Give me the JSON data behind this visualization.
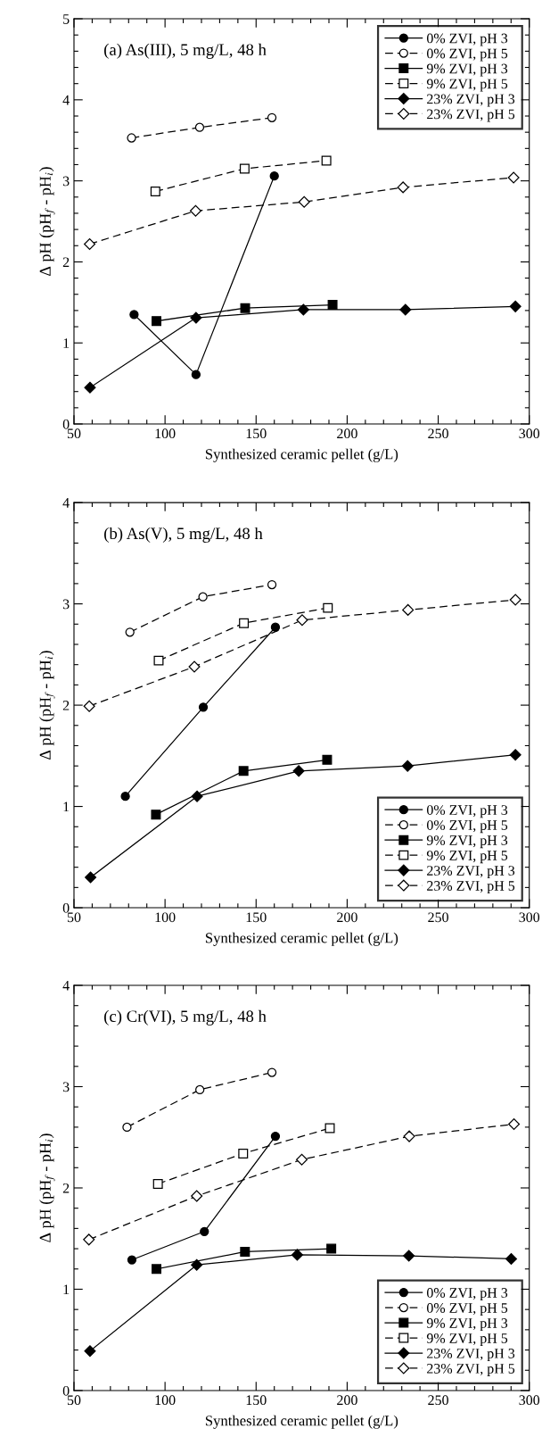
{
  "chart_data": [
    {
      "type": "line",
      "title": "(a) As(III), 5 mg/L, 48 h",
      "xlabel": "Synthesized ceramic pellet (g/L)",
      "ylabel": "Δ pH (pH$_{f}$ - pH$_{i}$)",
      "xlim": [
        50,
        300
      ],
      "xticks": [
        50,
        100,
        150,
        200,
        250,
        300
      ],
      "ylim": [
        0,
        5
      ],
      "yticks": [
        0,
        1,
        2,
        3,
        4,
        5
      ],
      "grid": false,
      "legend": "top right",
      "series": [
        {
          "name": "0% ZVI, pH 3",
          "color": "#000000",
          "marker": "circle",
          "line_style": "solid",
          "x": [
            83,
            117,
            160
          ],
          "values": [
            1.35,
            0.61,
            3.06
          ]
        },
        {
          "name": "0% ZVI, pH 5",
          "color": "#000000",
          "marker": "circle",
          "line_style": "dashed",
          "x": [
            81.6,
            119,
            158.7
          ],
          "values": [
            3.53,
            3.66,
            3.78
          ]
        },
        {
          "name": "9% ZVI, pH 3",
          "color": "#000000",
          "marker": "square",
          "line_style": "solid",
          "x": [
            95.3,
            144,
            192
          ],
          "values": [
            1.27,
            1.43,
            1.47
          ]
        },
        {
          "name": "9% ZVI, pH 5",
          "color": "#000000",
          "marker": "square",
          "line_style": "dashed",
          "x": [
            94.7,
            143.7,
            188.6
          ],
          "values": [
            2.87,
            3.15,
            3.25
          ]
        },
        {
          "name": "23% ZVI, pH 3",
          "color": "#000000",
          "marker": "diamond",
          "line_style": "solid",
          "x": [
            58.8,
            117,
            176,
            232,
            292.4
          ],
          "values": [
            0.45,
            1.31,
            1.41,
            1.41,
            1.45
          ]
        },
        {
          "name": "23% ZVI, pH 5",
          "color": "#000000",
          "marker": "diamond",
          "line_style": "dashed",
          "x": [
            58.6,
            116.8,
            176.4,
            230.7,
            291.4
          ],
          "values": [
            2.22,
            2.63,
            2.74,
            2.92,
            3.04
          ]
        }
      ]
    },
    {
      "type": "line",
      "title": "(b) As(V), 5 mg/L, 48 h",
      "xlabel": "Synthesized ceramic pellet (g/L)",
      "ylabel": "Δ pH (pH$_{f}$ - pH$_{i}$)",
      "xlim": [
        50,
        300
      ],
      "xticks": [
        50,
        100,
        150,
        200,
        250,
        300
      ],
      "ylim": [
        0,
        4
      ],
      "yticks": [
        0,
        1,
        2,
        3,
        4
      ],
      "grid": false,
      "legend": "bottom right",
      "series": [
        {
          "name": "0% ZVI, pH 3",
          "color": "#000000",
          "marker": "circle",
          "line_style": "solid",
          "x": [
            78.2,
            121,
            160.6
          ],
          "values": [
            1.1,
            1.98,
            2.77
          ]
        },
        {
          "name": "0% ZVI, pH 5",
          "color": "#000000",
          "marker": "circle",
          "line_style": "dashed",
          "x": [
            80.7,
            120.8,
            158.7
          ],
          "values": [
            2.72,
            3.07,
            3.19
          ]
        },
        {
          "name": "9% ZVI, pH 3",
          "color": "#000000",
          "marker": "square",
          "line_style": "solid",
          "x": [
            95,
            143.1,
            189
          ],
          "values": [
            0.92,
            1.35,
            1.46
          ]
        },
        {
          "name": "9% ZVI, pH 5",
          "color": "#000000",
          "marker": "square",
          "line_style": "dashed",
          "x": [
            96.5,
            143.3,
            189.4
          ],
          "values": [
            2.44,
            2.81,
            2.96
          ]
        },
        {
          "name": "23% ZVI, pH 3",
          "color": "#000000",
          "marker": "diamond",
          "line_style": "solid",
          "x": [
            59.1,
            117.6,
            173.4,
            233.2,
            292.4
          ],
          "values": [
            0.3,
            1.1,
            1.35,
            1.4,
            1.51
          ]
        },
        {
          "name": "23% ZVI, pH 5",
          "color": "#000000",
          "marker": "diamond",
          "line_style": "dashed",
          "x": [
            58.4,
            116.1,
            175.3,
            233.4,
            292.4
          ],
          "values": [
            1.99,
            2.38,
            2.84,
            2.94,
            3.04
          ]
        }
      ]
    },
    {
      "type": "line",
      "title": "(c) Cr(VI), 5 mg/L, 48 h",
      "xlabel": "Synthesized ceramic pellet (g/L)",
      "ylabel": "Δ pH (pH$_{f}$ - pH$_{i}$)",
      "xlim": [
        50,
        300
      ],
      "xticks": [
        50,
        100,
        150,
        200,
        250,
        300
      ],
      "ylim": [
        0,
        4
      ],
      "yticks": [
        0,
        1,
        2,
        3,
        4
      ],
      "grid": false,
      "legend": "bottom right",
      "series": [
        {
          "name": "0% ZVI, pH 3",
          "color": "#000000",
          "marker": "circle",
          "line_style": "solid",
          "x": [
            81.8,
            121.6,
            160.6
          ],
          "values": [
            1.29,
            1.57,
            2.51
          ]
        },
        {
          "name": "0% ZVI, pH 5",
          "color": "#000000",
          "marker": "circle",
          "line_style": "dashed",
          "x": [
            79.1,
            119.1,
            158.7
          ],
          "values": [
            2.6,
            2.97,
            3.14
          ]
        },
        {
          "name": "9% ZVI, pH 3",
          "color": "#000000",
          "marker": "square",
          "line_style": "solid",
          "x": [
            95.3,
            143.9,
            191.3
          ],
          "values": [
            1.2,
            1.37,
            1.4
          ]
        },
        {
          "name": "9% ZVI, pH 5",
          "color": "#000000",
          "marker": "square",
          "line_style": "dashed",
          "x": [
            96.1,
            142.9,
            190.5
          ],
          "values": [
            2.04,
            2.34,
            2.59
          ]
        },
        {
          "name": "23% ZVI, pH 3",
          "color": "#000000",
          "marker": "diamond",
          "line_style": "solid",
          "x": [
            58.8,
            117.4,
            172.6,
            233.9,
            290.1
          ],
          "values": [
            0.39,
            1.24,
            1.34,
            1.33,
            1.3
          ]
        },
        {
          "name": "23% ZVI, pH 5",
          "color": "#000000",
          "marker": "diamond",
          "line_style": "dashed",
          "x": [
            58.2,
            117.4,
            175.1,
            234.1,
            291.6
          ],
          "values": [
            1.49,
            1.92,
            2.28,
            2.51,
            2.63
          ]
        }
      ]
    }
  ]
}
